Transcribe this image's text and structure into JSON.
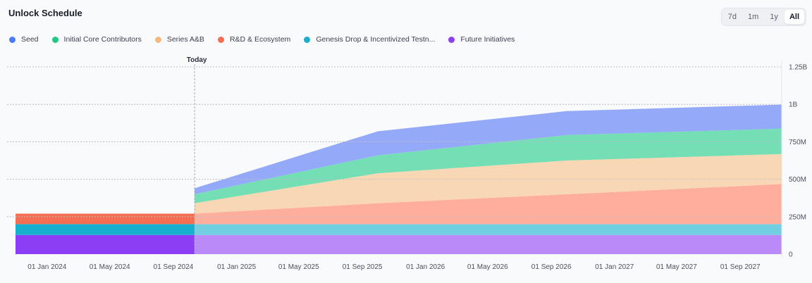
{
  "header": {
    "title": "Unlock Schedule",
    "ranges": [
      "7d",
      "1m",
      "1y",
      "All"
    ],
    "active_range": "All"
  },
  "legend": [
    {
      "label": "Seed",
      "color": "#4a7cf5"
    },
    {
      "label": "Initial Core Contributors",
      "color": "#1fc97e"
    },
    {
      "label": "Series A&B",
      "color": "#f4b982"
    },
    {
      "label": "R&D & Ecosystem",
      "color": "#f66e52"
    },
    {
      "label": "Genesis Drop & Incentivized Testn...",
      "color": "#16afce"
    },
    {
      "label": "Future Initiatives",
      "color": "#8c3ef4"
    }
  ],
  "chart_data": {
    "type": "area",
    "stacked": true,
    "x_ticks": [
      "01 Jan 2024",
      "01 May 2024",
      "01 Sep 2024",
      "01 Jan 2025",
      "01 May 2025",
      "01 Sep 2025",
      "01 Jan 2026",
      "01 May 2026",
      "01 Sep 2026",
      "01 Jan 2027",
      "01 May 2027",
      "01 Sep 2027"
    ],
    "y_ticks": [
      "0",
      "250M",
      "500M",
      "750M",
      "1B",
      "1.25B"
    ],
    "ylim": [
      0,
      1250000000
    ],
    "y_axis_side": "right",
    "xlim": [
      "2023-11-01",
      "2027-11-20"
    ],
    "today": {
      "label": "Today",
      "date": "2024-10-12"
    },
    "grid": true,
    "dates": [
      "2023-11-01",
      "2024-10-12",
      "2024-10-13",
      "2025-10-01",
      "2026-10-01",
      "2027-11-20"
    ],
    "series": [
      {
        "name": "Future Initiatives",
        "color_past": "#8c3ef4",
        "color_future": "#b98af8",
        "values": [
          128000000,
          128000000,
          128000000,
          128000000,
          128000000,
          128000000
        ]
      },
      {
        "name": "Genesis Drop & Incentivized Testn...",
        "color_past": "#16afce",
        "color_future": "#72cfe1",
        "values": [
          72000000,
          72000000,
          72000000,
          72000000,
          72000000,
          72000000
        ]
      },
      {
        "name": "R&D & Ecosystem",
        "color_past": "#f66e52",
        "color_future": "#ffae9c",
        "values": [
          70000000,
          70000000,
          70000000,
          140000000,
          200000000,
          268000000
        ]
      },
      {
        "name": "Series A&B",
        "color_past": "#f4b982",
        "color_future": "#f8d7b4",
        "values": [
          0,
          0,
          70000000,
          200000000,
          225000000,
          200000000
        ]
      },
      {
        "name": "Initial Core Contributors",
        "color_past": "#1fc97e",
        "color_future": "#74deb5",
        "values": [
          0,
          0,
          60000000,
          120000000,
          170000000,
          170000000
        ]
      },
      {
        "name": "Seed",
        "color_past": "#4a7cf5",
        "color_future": "#94a9f8",
        "values": [
          0,
          0,
          40000000,
          160000000,
          160000000,
          160000000
        ]
      }
    ]
  }
}
